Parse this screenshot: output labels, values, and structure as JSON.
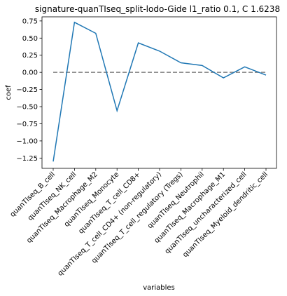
{
  "chart_data": {
    "type": "line",
    "title": "signature-quanTIseq_split-lodo-Gide l1_ratio 0.1, C 1.6238",
    "xlabel": "variables",
    "ylabel": "coef",
    "categories": [
      "quanTIseq_B_cell",
      "quanTIseq_NK_cell",
      "quanTIseq_Macrophage_M2",
      "quanTIseq_Monocyte",
      "quanTIseq_T_cell_CD8+",
      "quanTIseq_T_cell_CD4+ (non-regulatory)",
      "quanTIseq_T_cell_regulatory (Tregs)",
      "quanTIseq_Neutrophil",
      "quanTIseq_Macrophage_M1",
      "quanTIseq_uncharacterized_cell",
      "quanTIseq_Myeloid_dendritic_cell"
    ],
    "series": [
      {
        "color": "#1f77b4",
        "values": [
          -1.3,
          0.73,
          0.57,
          -0.56,
          0.43,
          0.31,
          0.14,
          0.1,
          -0.08,
          0.08,
          -0.04
        ]
      }
    ],
    "reference_line": {
      "y": 0,
      "style": "dashed",
      "color": "#7f7f7f"
    },
    "ylim": [
      -1.4,
      0.81
    ],
    "yticks": [
      -1.25,
      -1.0,
      -0.75,
      -0.5,
      -0.25,
      0.0,
      0.25,
      0.5,
      0.75
    ],
    "ytick_labels": [
      "−1.25",
      "−1.00",
      "−0.75",
      "−0.50",
      "−0.25",
      "0.00",
      "0.25",
      "0.50",
      "0.75"
    ],
    "grid": false,
    "legend": "none"
  }
}
